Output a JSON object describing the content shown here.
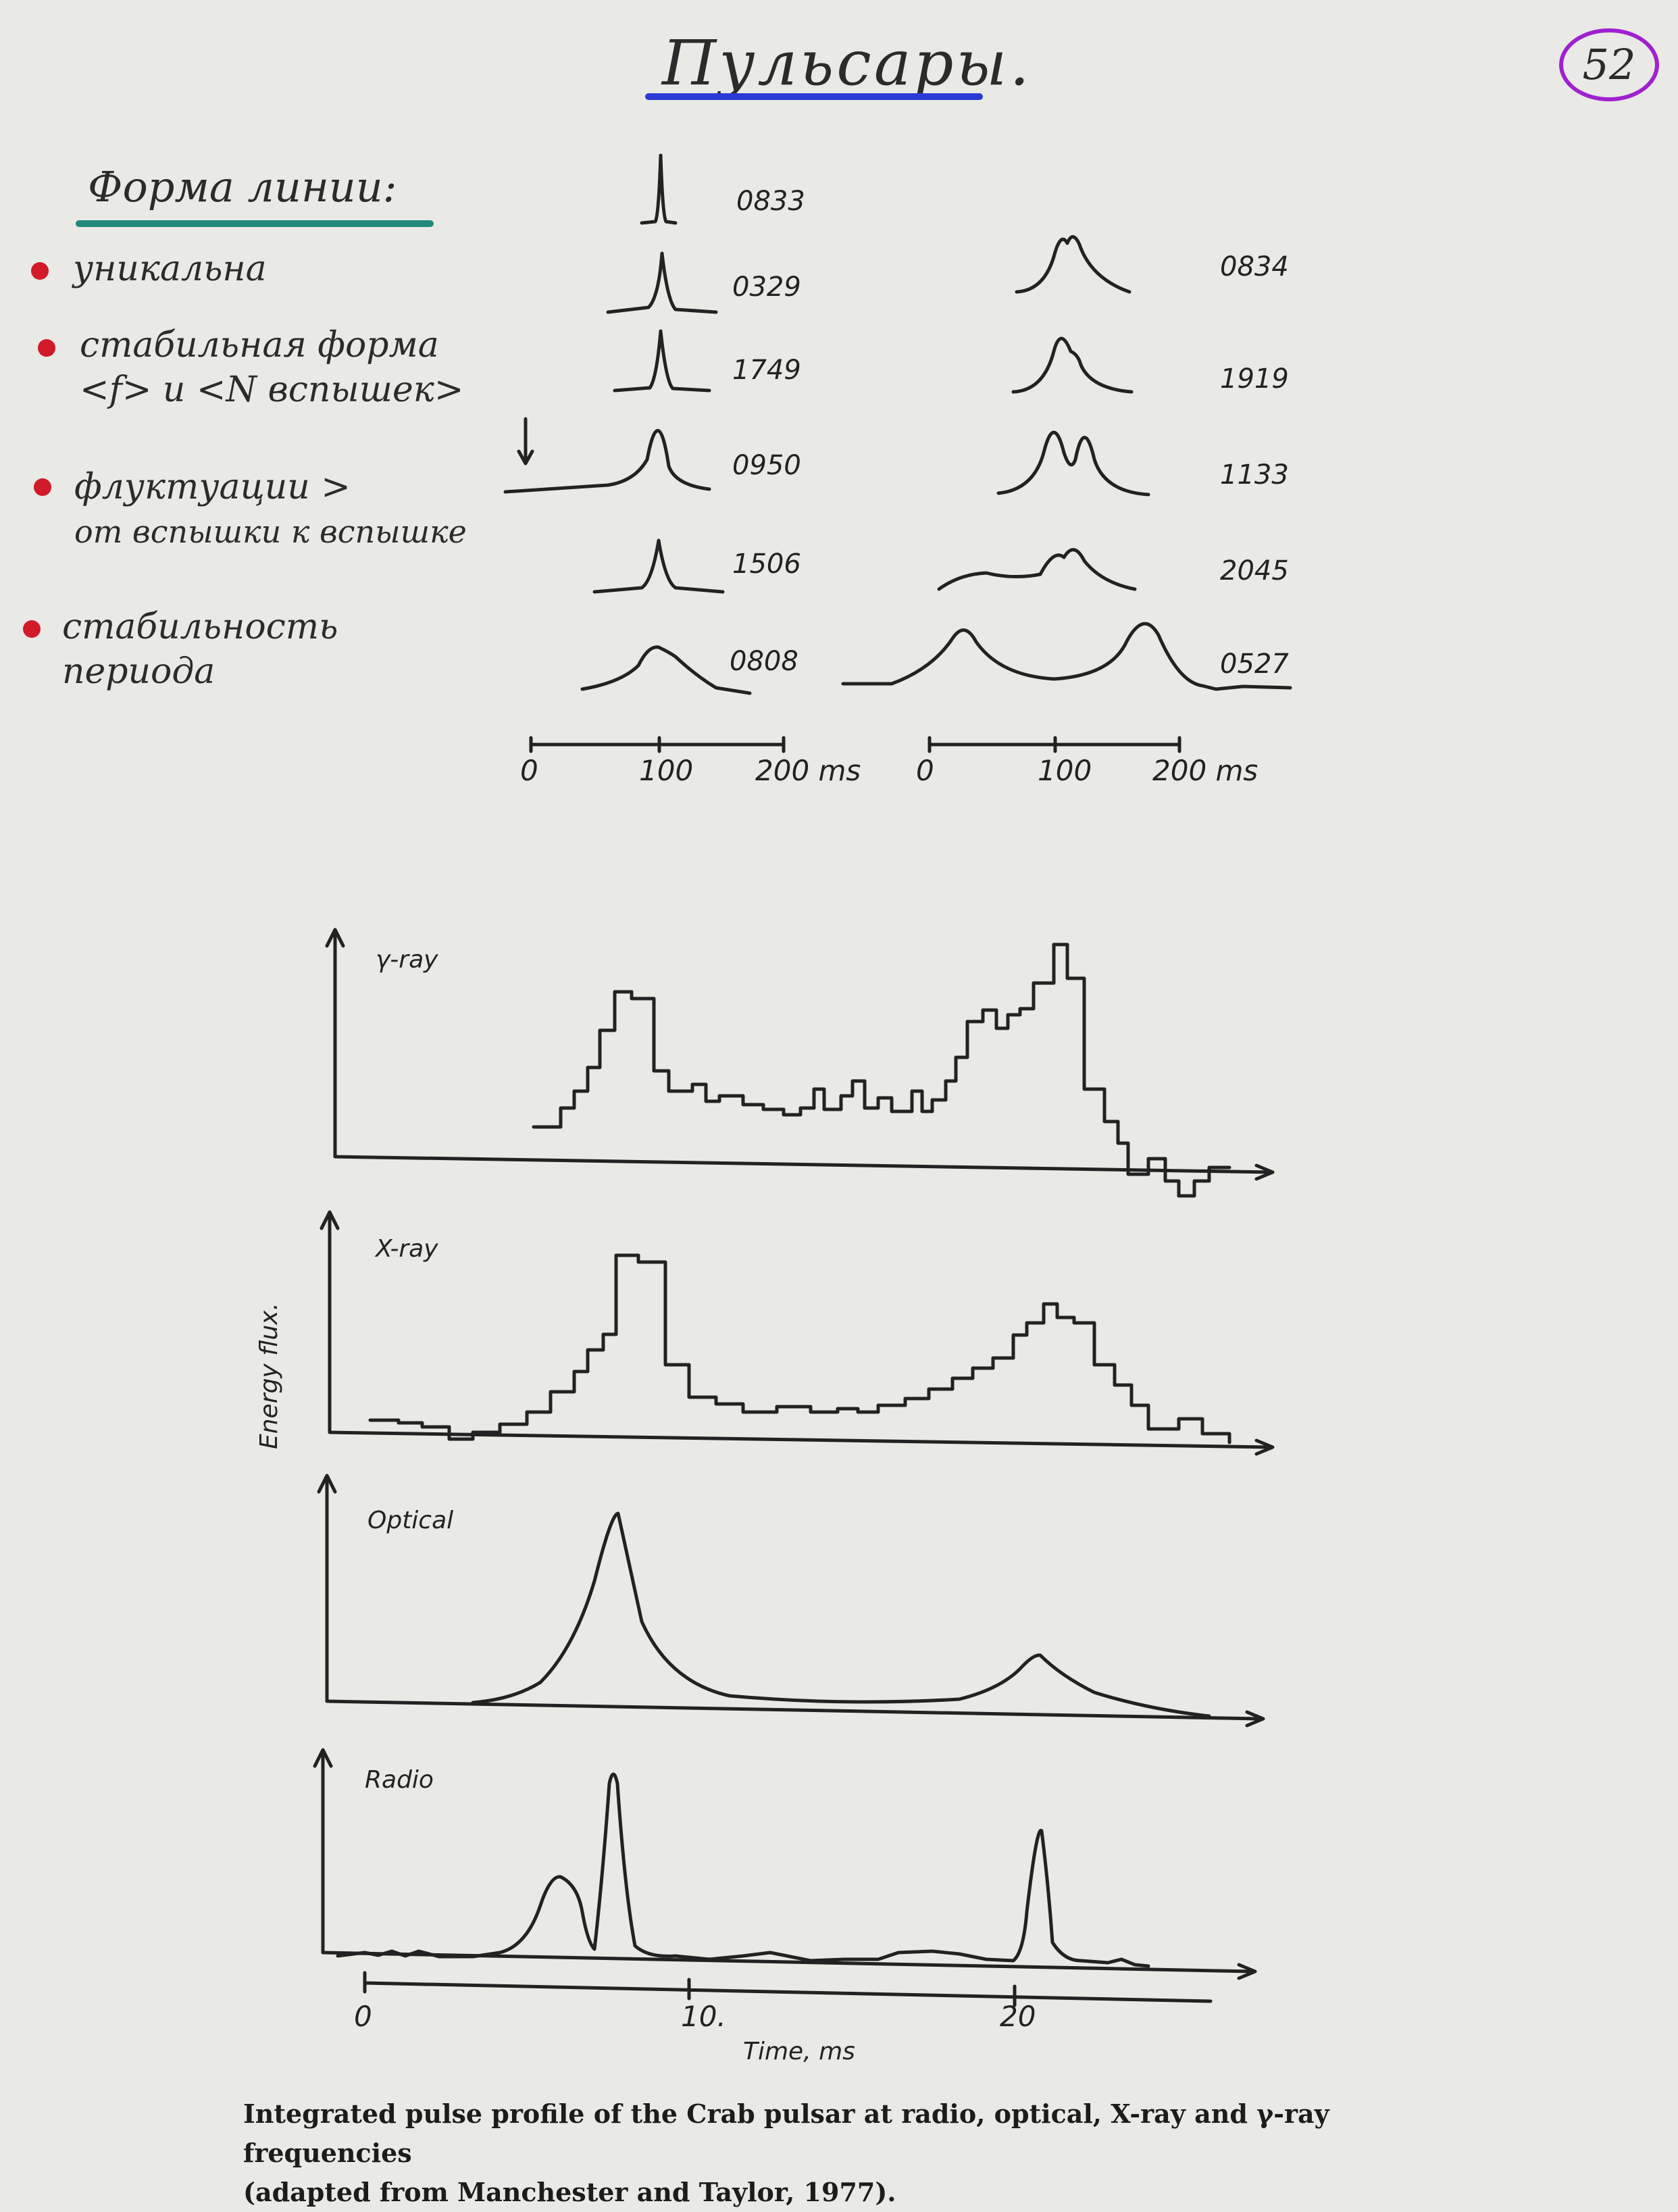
{
  "title": "Пульсары.",
  "page_number": "52",
  "notes": {
    "heading": "Форма линии:",
    "items": [
      {
        "lines": [
          "уникальна"
        ]
      },
      {
        "lines": [
          "стабильная форма",
          "<f> и <N вспышек>"
        ]
      },
      {
        "lines": [
          "флуктуации >",
          "от вспышки к вспышке"
        ]
      },
      {
        "lines": [
          "стабильность",
          "периода"
        ]
      }
    ]
  },
  "pulse_profiles": {
    "left": [
      "0833",
      "0329",
      "1749",
      "0950",
      "1506",
      "0808"
    ],
    "right": [
      "0834",
      "1919",
      "1133",
      "2045",
      "0527"
    ],
    "axis_ticks": [
      "0",
      "100",
      "200 ms"
    ]
  },
  "crab_chart": {
    "panels": [
      "γ-ray",
      "X-ray",
      "Optical",
      "Radio"
    ],
    "ylabel": "Energy flux.",
    "xlabel": "Time, ms",
    "x_ticks": [
      "0",
      "10.",
      "20"
    ]
  },
  "caption": {
    "line1": "Integrated pulse profile of the Crab pulsar at radio, optical, X-ray and γ-ray frequencies",
    "line2": "(adapted from Manchester and Taylor, 1977)."
  },
  "colors": {
    "ink": "#222222",
    "title_underline": "#2b3ad6",
    "heading_underline": "#1f8a7c",
    "bullet": "#d11a2a",
    "page_circle": "#a020d0"
  }
}
